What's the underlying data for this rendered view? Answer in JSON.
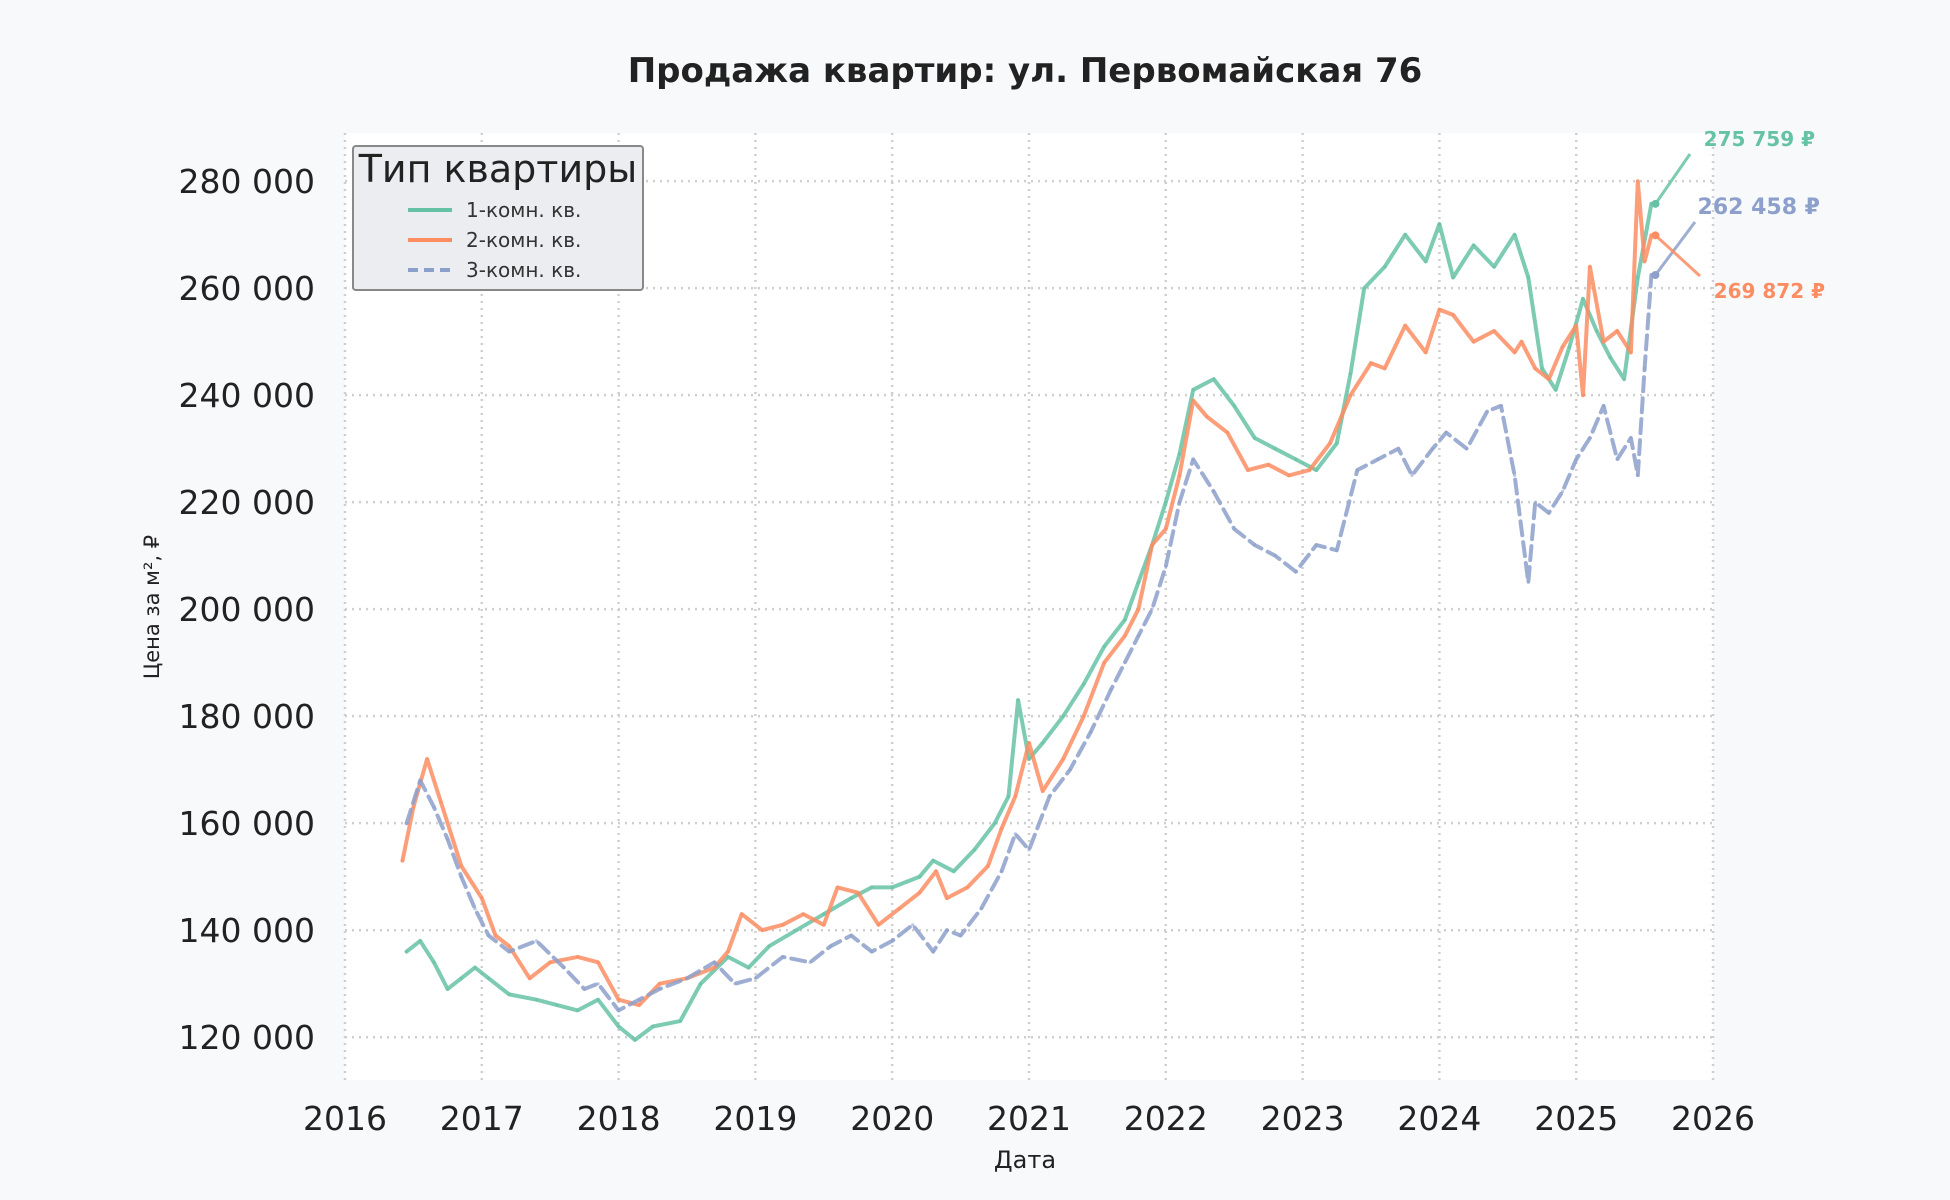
{
  "chart_data": {
    "type": "line",
    "title": "Продажа квартир: ул. Первомайская 76",
    "xlabel": "Дата",
    "ylabel": "Цена за м², ₽",
    "xlim": [
      2016.0,
      2026.0
    ],
    "ylim": [
      112000,
      289000
    ],
    "x_ticks": [
      2016,
      2017,
      2018,
      2019,
      2020,
      2021,
      2022,
      2023,
      2024,
      2025,
      2026
    ],
    "x_tick_labels": [
      "2016",
      "2017",
      "2018",
      "2019",
      "2020",
      "2021",
      "2022",
      "2023",
      "2024",
      "2025",
      "2026"
    ],
    "y_ticks": [
      120000,
      140000,
      160000,
      180000,
      200000,
      220000,
      240000,
      260000,
      280000
    ],
    "y_tick_labels": [
      "120 000",
      "140 000",
      "160 000",
      "180 000",
      "200 000",
      "220 000",
      "240 000",
      "260 000",
      "280 000"
    ],
    "grid": true,
    "legend": {
      "title": "Тип квартиры",
      "placement": "upper-left"
    },
    "series": [
      {
        "name": "1-комн. кв.",
        "color": "#66c2a5",
        "dash": "solid",
        "x": [
          2016.45,
          2016.55,
          2016.65,
          2016.75,
          2016.85,
          2016.95,
          2017.05,
          2017.2,
          2017.4,
          2017.55,
          2017.7,
          2017.85,
          2018.0,
          2018.12,
          2018.25,
          2018.45,
          2018.6,
          2018.8,
          2018.95,
          2019.1,
          2019.3,
          2019.5,
          2019.7,
          2019.85,
          2020.0,
          2020.2,
          2020.3,
          2020.45,
          2020.6,
          2020.75,
          2020.85,
          2020.92,
          2021.0,
          2021.1,
          2021.25,
          2021.4,
          2021.55,
          2021.7,
          2021.8,
          2021.9,
          2022.0,
          2022.1,
          2022.2,
          2022.35,
          2022.5,
          2022.65,
          2022.8,
          2022.95,
          2023.1,
          2023.25,
          2023.35,
          2023.45,
          2023.6,
          2023.75,
          2023.9,
          2024.0,
          2024.1,
          2024.25,
          2024.4,
          2024.55,
          2024.65,
          2024.75,
          2024.85,
          2024.95,
          2025.05,
          2025.15,
          2025.25,
          2025.35,
          2025.45,
          2025.55
        ],
        "values": [
          136000,
          138000,
          134000,
          129000,
          131000,
          133000,
          131000,
          128000,
          127000,
          126000,
          125000,
          127000,
          122000,
          119500,
          122000,
          123000,
          130000,
          135000,
          133000,
          137000,
          140000,
          143000,
          146000,
          148000,
          148000,
          150000,
          153000,
          151000,
          155000,
          160000,
          165000,
          183000,
          172000,
          175000,
          180000,
          186000,
          193000,
          198000,
          205000,
          212000,
          220000,
          229000,
          241000,
          243000,
          238000,
          232000,
          230000,
          228000,
          226000,
          231000,
          244000,
          260000,
          264000,
          270000,
          265000,
          272000,
          262000,
          268000,
          264000,
          270000,
          262000,
          245000,
          241000,
          249000,
          258000,
          252000,
          247000,
          243000,
          262000,
          275759
        ]
      },
      {
        "name": "2-комн. кв.",
        "color": "#fc8d62",
        "dash": "solid",
        "x": [
          2016.42,
          2016.5,
          2016.6,
          2016.7,
          2016.85,
          2017.0,
          2017.1,
          2017.2,
          2017.35,
          2017.5,
          2017.7,
          2017.85,
          2018.0,
          2018.15,
          2018.3,
          2018.5,
          2018.7,
          2018.8,
          2018.9,
          2019.05,
          2019.2,
          2019.35,
          2019.5,
          2019.6,
          2019.75,
          2019.9,
          2020.05,
          2020.2,
          2020.32,
          2020.4,
          2020.55,
          2020.7,
          2020.8,
          2020.9,
          2021.0,
          2021.1,
          2021.25,
          2021.4,
          2021.55,
          2021.7,
          2021.8,
          2021.9,
          2022.0,
          2022.1,
          2022.2,
          2022.3,
          2022.45,
          2022.6,
          2022.75,
          2022.9,
          2023.05,
          2023.2,
          2023.35,
          2023.5,
          2023.6,
          2023.75,
          2023.9,
          2024.0,
          2024.1,
          2024.25,
          2024.4,
          2024.55,
          2024.6,
          2024.7,
          2024.8,
          2024.9,
          2025.0,
          2025.05,
          2025.1,
          2025.2,
          2025.3,
          2025.4,
          2025.45,
          2025.5,
          2025.55
        ],
        "values": [
          153000,
          163000,
          172000,
          164000,
          152000,
          146000,
          139000,
          137000,
          131000,
          134000,
          135000,
          134000,
          127000,
          126000,
          130000,
          131000,
          133000,
          136000,
          143000,
          140000,
          141000,
          143000,
          141000,
          148000,
          147000,
          141000,
          144000,
          147000,
          151000,
          146000,
          148000,
          152000,
          159000,
          165000,
          175000,
          166000,
          172000,
          180000,
          190000,
          195000,
          200000,
          212000,
          215000,
          225000,
          239000,
          236000,
          233000,
          226000,
          227000,
          225000,
          226000,
          231000,
          240000,
          246000,
          245000,
          253000,
          248000,
          256000,
          255000,
          250000,
          252000,
          248000,
          250000,
          245000,
          243000,
          249000,
          253000,
          240000,
          264000,
          250000,
          252000,
          248000,
          280000,
          265000,
          269872
        ]
      },
      {
        "name": "3-комн. кв.",
        "color": "#8da0cb",
        "dash": "dashed",
        "x": [
          2016.45,
          2016.55,
          2016.65,
          2016.75,
          2016.85,
          2016.95,
          2017.05,
          2017.2,
          2017.4,
          2017.6,
          2017.75,
          2017.85,
          2018.0,
          2018.15,
          2018.3,
          2018.5,
          2018.7,
          2018.85,
          2019.0,
          2019.2,
          2019.4,
          2019.55,
          2019.7,
          2019.85,
          2020.0,
          2020.15,
          2020.3,
          2020.4,
          2020.5,
          2020.65,
          2020.8,
          2020.9,
          2021.0,
          2021.15,
          2021.3,
          2021.45,
          2021.6,
          2021.7,
          2021.8,
          2021.9,
          2022.0,
          2022.1,
          2022.2,
          2022.35,
          2022.5,
          2022.65,
          2022.8,
          2022.95,
          2023.1,
          2023.25,
          2023.4,
          2023.55,
          2023.7,
          2023.8,
          2023.95,
          2024.05,
          2024.2,
          2024.35,
          2024.45,
          2024.55,
          2024.65,
          2024.7,
          2024.8,
          2024.9,
          2025.0,
          2025.1,
          2025.2,
          2025.3,
          2025.4,
          2025.45,
          2025.5,
          2025.55
        ],
        "values": [
          160000,
          168000,
          163000,
          157000,
          150000,
          144000,
          139000,
          136000,
          138000,
          133000,
          129000,
          130000,
          125000,
          127000,
          129000,
          131000,
          134000,
          130000,
          131000,
          135000,
          134000,
          137000,
          139000,
          136000,
          138000,
          141000,
          136000,
          140000,
          139000,
          144000,
          151000,
          158000,
          155000,
          165000,
          170000,
          177000,
          185000,
          190000,
          195000,
          200000,
          208000,
          220000,
          228000,
          222000,
          215000,
          212000,
          210000,
          207000,
          212000,
          211000,
          226000,
          228000,
          230000,
          225000,
          230000,
          233000,
          230000,
          237000,
          238000,
          225000,
          205000,
          220000,
          218000,
          222000,
          228000,
          232000,
          238000,
          228000,
          232000,
          225000,
          245000,
          262458
        ]
      }
    ],
    "annotations": [
      {
        "series": "1-комн. кв.",
        "text": "275 759 ₽",
        "color": "#66c2a5"
      },
      {
        "series": "3-комн. кв.",
        "text": "262 458 ₽",
        "color": "#8da0cb"
      },
      {
        "series": "2-комн. кв.",
        "text": "269 872 ₽",
        "color": "#fc8d62"
      }
    ]
  }
}
